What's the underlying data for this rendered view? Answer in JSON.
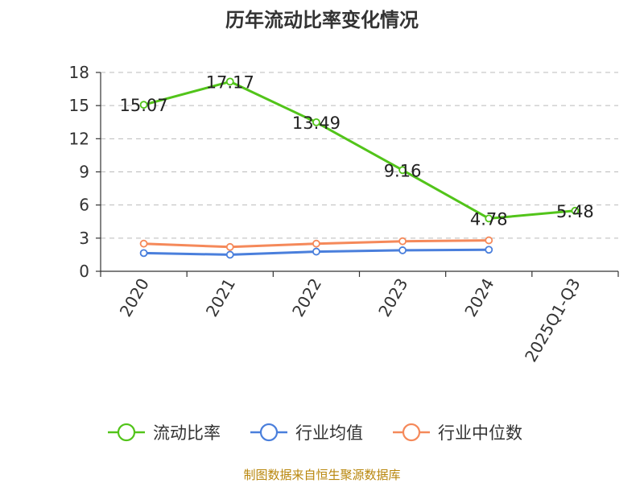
{
  "chart_data": {
    "type": "line",
    "title": "历年流动比率变化情况",
    "xlabel": "",
    "ylabel": "",
    "categories": [
      "2020",
      "2021",
      "2022",
      "2023",
      "2024",
      "2025Q1-Q3"
    ],
    "ylim": [
      0,
      18
    ],
    "yticks": [
      0,
      3,
      6,
      9,
      12,
      15,
      18
    ],
    "grid": true,
    "legend_position": "bottom",
    "series": [
      {
        "name": "流动比率",
        "color": "#52c41a",
        "values": [
          15.07,
          17.17,
          13.49,
          9.16,
          4.78,
          5.48
        ],
        "labels": [
          "15.07",
          "17.17",
          "13.49",
          "9.16",
          "4.78",
          "5.48"
        ]
      },
      {
        "name": "行业均值",
        "color": "#4a7fdc",
        "values": [
          1.65,
          1.5,
          1.78,
          1.9,
          1.95,
          null
        ]
      },
      {
        "name": "行业中位数",
        "color": "#f5895a",
        "values": [
          2.5,
          2.2,
          2.5,
          2.72,
          2.8,
          null
        ]
      }
    ]
  },
  "source_text": "制图数据来自恒生聚源数据库"
}
